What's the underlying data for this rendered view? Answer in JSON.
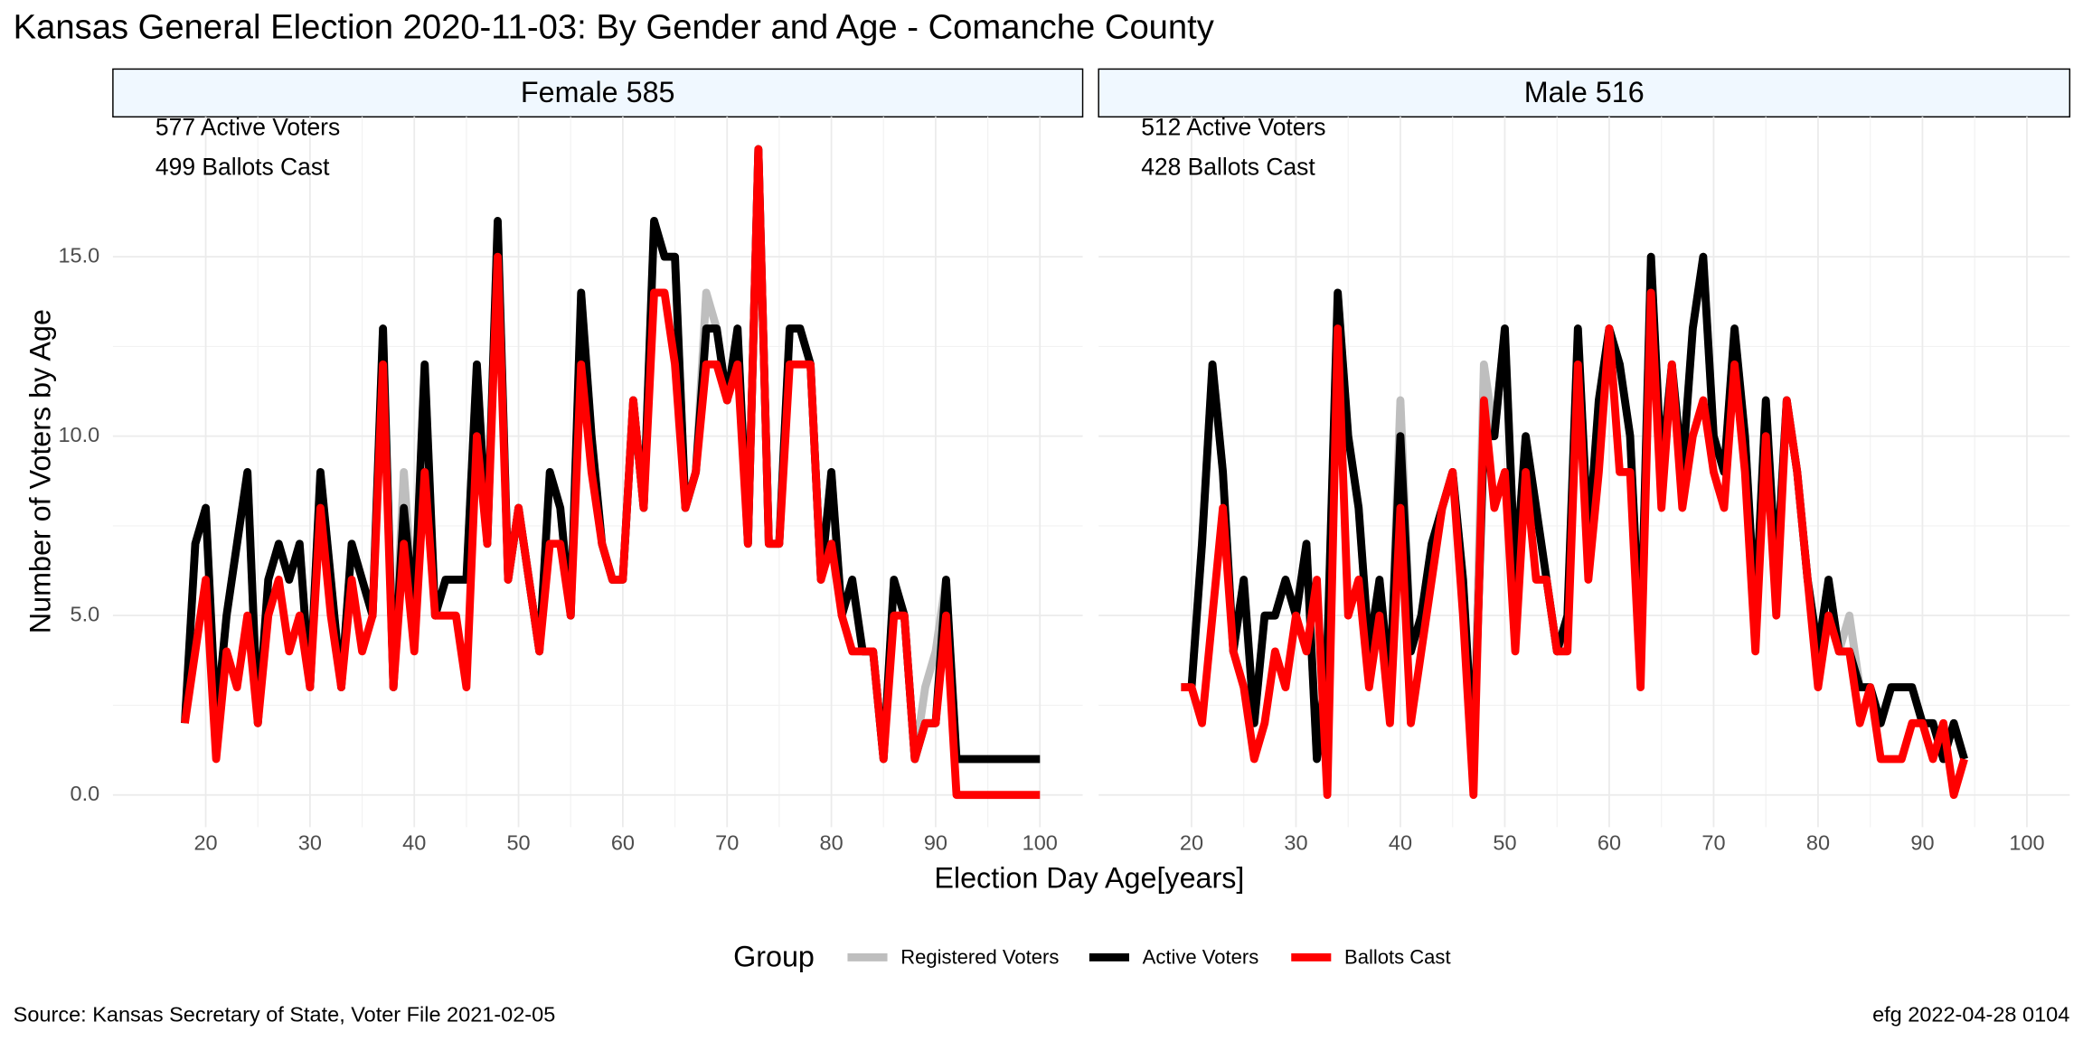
{
  "title": "Kansas General Election 2020-11-03:  By Gender and Age - Comanche County",
  "y_label": "Number of Voters by Age",
  "x_label": "Election Day Age[years]",
  "legend_title": "Group",
  "caption_left": "Source:  Kansas Secretary of State, Voter File  2021-02-05",
  "caption_right": "efg 2022-04-28 0104",
  "chart_data": [
    {
      "type": "line",
      "title": "Female 585",
      "annotations": [
        "577 Active Voters",
        "499 Ballots Cast"
      ],
      "x": [
        18,
        19,
        20,
        21,
        22,
        23,
        24,
        25,
        26,
        27,
        28,
        29,
        30,
        31,
        32,
        33,
        34,
        35,
        36,
        37,
        38,
        39,
        40,
        41,
        42,
        43,
        44,
        45,
        46,
        47,
        48,
        49,
        50,
        51,
        52,
        53,
        54,
        55,
        56,
        57,
        58,
        59,
        60,
        61,
        62,
        63,
        64,
        65,
        66,
        67,
        68,
        69,
        70,
        71,
        72,
        73,
        74,
        75,
        76,
        77,
        78,
        79,
        80,
        81,
        82,
        83,
        84,
        85,
        86,
        87,
        88,
        89,
        90,
        91,
        92,
        93,
        94,
        95,
        96,
        97,
        98,
        99,
        100
      ],
      "series": [
        {
          "name": "Registered Voters",
          "color": "#bebebe",
          "values": [
            2,
            7,
            8,
            2,
            5,
            7,
            9,
            2,
            6,
            7,
            6,
            7,
            3,
            9,
            6,
            3,
            7,
            6,
            5,
            13,
            3,
            9,
            5,
            12,
            5,
            6,
            6,
            6,
            12,
            7,
            16,
            6,
            8,
            6,
            4,
            9,
            8,
            5,
            14,
            10,
            7,
            6,
            6,
            11,
            8,
            16,
            15,
            15,
            8,
            9,
            14,
            13,
            11,
            13,
            7,
            18,
            7,
            7,
            13,
            13,
            12,
            6,
            9,
            5,
            6,
            4,
            4,
            1,
            6,
            5,
            1,
            3,
            4,
            6,
            1,
            1,
            1,
            1,
            1,
            1,
            1,
            1,
            1
          ]
        },
        {
          "name": "Active Voters",
          "color": "#000000",
          "values": [
            2,
            7,
            8,
            2,
            5,
            7,
            9,
            2,
            6,
            7,
            6,
            7,
            3,
            9,
            6,
            3,
            7,
            6,
            5,
            13,
            3,
            8,
            5,
            12,
            5,
            6,
            6,
            6,
            12,
            7,
            16,
            6,
            8,
            6,
            4,
            9,
            8,
            5,
            14,
            10,
            7,
            6,
            6,
            11,
            8,
            16,
            15,
            15,
            8,
            9,
            13,
            13,
            11,
            13,
            7,
            18,
            7,
            7,
            13,
            13,
            12,
            6,
            9,
            5,
            6,
            4,
            4,
            1,
            6,
            5,
            1,
            2,
            2,
            6,
            1,
            1,
            1,
            1,
            1,
            1,
            1,
            1,
            1
          ]
        },
        {
          "name": "Ballots Cast",
          "color": "#ff0000",
          "values": [
            2,
            4,
            6,
            1,
            4,
            3,
            5,
            2,
            5,
            6,
            4,
            5,
            3,
            8,
            5,
            3,
            6,
            4,
            5,
            12,
            3,
            7,
            4,
            9,
            5,
            5,
            5,
            3,
            10,
            7,
            15,
            6,
            8,
            6,
            4,
            7,
            7,
            5,
            12,
            9,
            7,
            6,
            6,
            11,
            8,
            14,
            14,
            12,
            8,
            9,
            12,
            12,
            11,
            12,
            7,
            18,
            7,
            7,
            12,
            12,
            12,
            6,
            7,
            5,
            4,
            4,
            4,
            1,
            5,
            5,
            1,
            2,
            2,
            5,
            0,
            0,
            0,
            0,
            0,
            0,
            0,
            0,
            0
          ]
        }
      ],
      "xlim": [
        11.1,
        104.1
      ],
      "xticks": [
        20,
        30,
        40,
        50,
        60,
        70,
        80,
        90,
        100
      ],
      "ylim": [
        -0.9,
        18.9
      ],
      "yticks": [
        {
          "value": 0,
          "label": "0.0"
        },
        {
          "value": 5,
          "label": "5.0"
        },
        {
          "value": 10,
          "label": "10.0"
        },
        {
          "value": 15,
          "label": "15.0"
        }
      ],
      "grid": true
    },
    {
      "type": "line",
      "title": "Male 516",
      "annotations": [
        "512 Active Voters",
        "428 Ballots Cast"
      ],
      "x": [
        19,
        20,
        21,
        22,
        23,
        24,
        25,
        26,
        27,
        28,
        29,
        30,
        31,
        32,
        33,
        34,
        35,
        36,
        37,
        38,
        39,
        40,
        41,
        42,
        43,
        44,
        45,
        46,
        47,
        48,
        49,
        50,
        51,
        52,
        53,
        54,
        55,
        56,
        57,
        58,
        59,
        60,
        61,
        62,
        63,
        64,
        65,
        66,
        67,
        68,
        69,
        70,
        71,
        72,
        73,
        74,
        75,
        76,
        77,
        78,
        79,
        80,
        81,
        82,
        83,
        84,
        85,
        86,
        87,
        88,
        89,
        90,
        91,
        92,
        93,
        94
      ],
      "series": [
        {
          "name": "Registered Voters",
          "color": "#bebebe",
          "values": [
            3,
            3,
            7,
            12,
            9,
            4,
            6,
            2,
            5,
            5,
            6,
            5,
            7,
            1,
            4,
            14,
            10,
            8,
            4,
            6,
            3,
            11,
            4,
            5,
            7,
            8,
            9,
            6,
            1,
            12,
            10,
            13,
            6,
            10,
            8,
            6,
            4,
            5,
            13,
            7,
            11,
            13,
            12,
            10,
            4,
            15,
            9,
            12,
            9,
            13,
            15,
            10,
            9,
            13,
            10,
            5,
            11,
            6,
            11,
            9,
            6,
            4,
            6,
            4,
            5,
            3,
            3,
            2,
            3,
            3,
            3,
            2,
            2,
            1,
            2,
            1
          ]
        },
        {
          "name": "Active Voters",
          "color": "#000000",
          "values": [
            3,
            3,
            7,
            12,
            9,
            4,
            6,
            2,
            5,
            5,
            6,
            5,
            7,
            1,
            4,
            14,
            10,
            8,
            4,
            6,
            3,
            10,
            4,
            5,
            7,
            8,
            9,
            6,
            1,
            10,
            10,
            13,
            6,
            10,
            8,
            6,
            4,
            5,
            13,
            7,
            11,
            13,
            12,
            10,
            4,
            15,
            9,
            12,
            9,
            13,
            15,
            10,
            9,
            13,
            10,
            5,
            11,
            6,
            11,
            9,
            6,
            4,
            6,
            4,
            4,
            3,
            3,
            2,
            3,
            3,
            3,
            2,
            2,
            1,
            2,
            1
          ]
        },
        {
          "name": "Ballots Cast",
          "color": "#ff0000",
          "values": [
            3,
            3,
            2,
            5,
            8,
            4,
            3,
            1,
            2,
            4,
            3,
            5,
            4,
            6,
            0,
            13,
            5,
            6,
            3,
            5,
            2,
            8,
            2,
            4,
            6,
            8,
            9,
            5,
            0,
            11,
            8,
            9,
            4,
            9,
            6,
            6,
            4,
            4,
            12,
            6,
            9,
            13,
            9,
            9,
            3,
            14,
            8,
            12,
            8,
            10,
            11,
            9,
            8,
            12,
            9,
            4,
            10,
            5,
            11,
            9,
            6,
            3,
            5,
            4,
            4,
            2,
            3,
            1,
            1,
            1,
            2,
            2,
            1,
            2,
            0,
            1
          ]
        }
      ],
      "xlim": [
        11.1,
        104.1
      ],
      "xticks": [
        20,
        30,
        40,
        50,
        60,
        70,
        80,
        90,
        100
      ],
      "ylim": [
        -0.9,
        18.9
      ],
      "yticks": [
        {
          "value": 0,
          "label": "0.0"
        },
        {
          "value": 5,
          "label": "5.0"
        },
        {
          "value": 10,
          "label": "10.0"
        },
        {
          "value": 15,
          "label": "15.0"
        }
      ],
      "grid": true
    }
  ]
}
